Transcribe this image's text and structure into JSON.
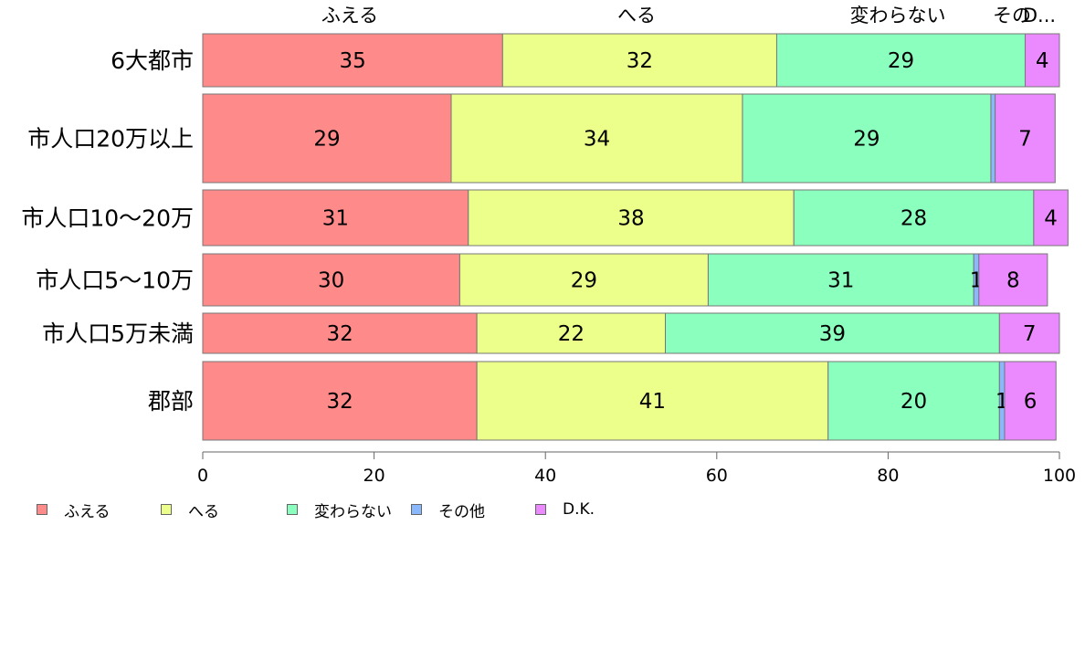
{
  "chart_data": {
    "type": "bar",
    "orientation": "horizontal",
    "stacked": true,
    "categories": [
      "6大都市",
      "市人口20万以上",
      "市人口10〜20万",
      "市人口5〜10万",
      "市人口5万未満",
      "郡部"
    ],
    "series": [
      {
        "name": "ふえる",
        "color": "#FF8A8A",
        "values": [
          35,
          29,
          31,
          30,
          32,
          32
        ]
      },
      {
        "name": "へる",
        "color": "#EBFF8A",
        "values": [
          32,
          34,
          38,
          29,
          22,
          41
        ]
      },
      {
        "name": "変わらない",
        "color": "#8AFFBE",
        "values": [
          29,
          29,
          28,
          31,
          39,
          20
        ]
      },
      {
        "name": "その他",
        "color": "#8AB8FF",
        "values": [
          0,
          0.5,
          0,
          0.6,
          0,
          0.6
        ]
      },
      {
        "name": "D.K.",
        "color": "#EB8AFF",
        "values": [
          4,
          7,
          4,
          8,
          7,
          6
        ]
      }
    ],
    "data_labels": [
      [
        "35",
        "32",
        "29",
        "",
        "4"
      ],
      [
        "29",
        "34",
        "29",
        "",
        "7"
      ],
      [
        "31",
        "38",
        "28",
        "",
        "4"
      ],
      [
        "30",
        "29",
        "31",
        "1",
        "8"
      ],
      [
        "32",
        "22",
        "39",
        "",
        "7"
      ],
      [
        "32",
        "41",
        "20",
        "1",
        "6"
      ]
    ],
    "top_labels": [
      "ふえる",
      "へる",
      "変わらない",
      "その",
      "D..."
    ],
    "xlim": [
      0,
      100
    ],
    "xticks": [
      0,
      20,
      40,
      60,
      80,
      100
    ],
    "xlabel": "",
    "ylabel": "",
    "title": "",
    "grid": false,
    "legend_position": "bottom-left"
  }
}
